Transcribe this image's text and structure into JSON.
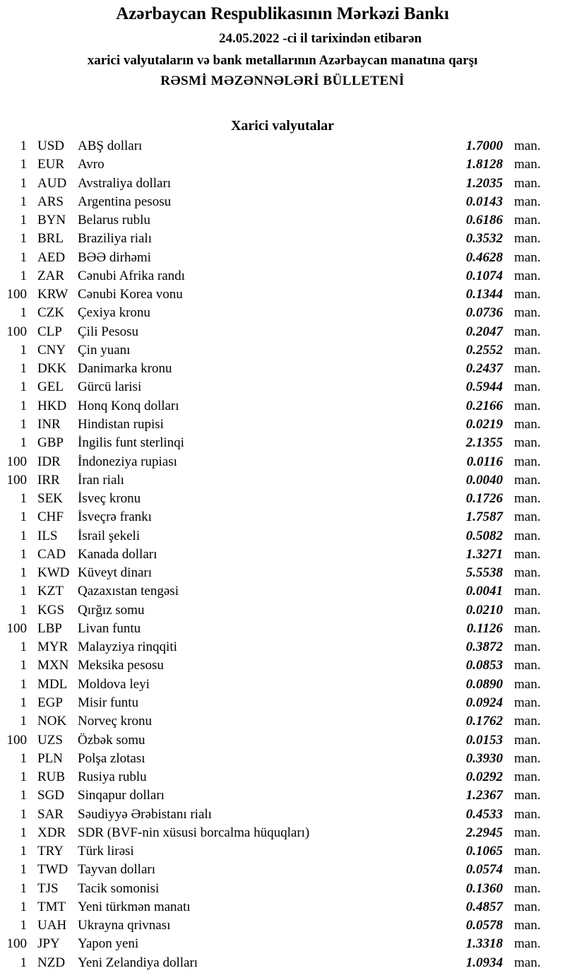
{
  "header": {
    "title": "Azərbaycan Respublikasının Mərkəzi Bankı",
    "date_line": "24.05.2022 -ci il tarixindən etibarən",
    "subtitle": "xarici valyutaların və bank metallarının Azərbaycan manatına qarşı",
    "bulletin": "RƏSMİ MƏZƏNNƏLƏRİ BÜLLETENİ"
  },
  "section_title": "Xarici valyutalar",
  "unit": "man.",
  "rates": [
    {
      "amount": "1",
      "code": "USD",
      "name": "ABŞ dolları",
      "rate": "1.7000"
    },
    {
      "amount": "1",
      "code": "EUR",
      "name": "Avro",
      "rate": "1.8128"
    },
    {
      "amount": "1",
      "code": "AUD",
      "name": "Avstraliya dolları",
      "rate": "1.2035"
    },
    {
      "amount": "1",
      "code": "ARS",
      "name": "Argentina pesosu",
      "rate": "0.0143"
    },
    {
      "amount": "1",
      "code": "BYN",
      "name": "Belarus rublu",
      "rate": "0.6186"
    },
    {
      "amount": "1",
      "code": "BRL",
      "name": "Braziliya rialı",
      "rate": "0.3532"
    },
    {
      "amount": "1",
      "code": "AED",
      "name": "BƏƏ dirhəmi",
      "rate": "0.4628"
    },
    {
      "amount": "1",
      "code": "ZAR",
      "name": "Cənubi Afrika randı",
      "rate": "0.1074"
    },
    {
      "amount": "100",
      "code": "KRW",
      "name": "Cənubi Korea vonu",
      "rate": "0.1344"
    },
    {
      "amount": "1",
      "code": "CZK",
      "name": "Çexiya kronu",
      "rate": "0.0736"
    },
    {
      "amount": "100",
      "code": "CLP",
      "name": "Çili Pesosu",
      "rate": "0.2047"
    },
    {
      "amount": "1",
      "code": "CNY",
      "name": "Çin yuanı",
      "rate": "0.2552"
    },
    {
      "amount": "1",
      "code": "DKK",
      "name": "Danimarka kronu",
      "rate": "0.2437"
    },
    {
      "amount": "1",
      "code": "GEL",
      "name": "Gürcü larisi",
      "rate": "0.5944"
    },
    {
      "amount": "1",
      "code": "HKD",
      "name": "Honq Konq dolları",
      "rate": "0.2166"
    },
    {
      "amount": "1",
      "code": "INR",
      "name": "Hindistan rupisi",
      "rate": "0.0219"
    },
    {
      "amount": "1",
      "code": "GBP",
      "name": "İngilis funt sterlinqi",
      "rate": "2.1355"
    },
    {
      "amount": "100",
      "code": "IDR",
      "name": "İndoneziya rupiası",
      "rate": "0.0116"
    },
    {
      "amount": "100",
      "code": "IRR",
      "name": "İran rialı",
      "rate": "0.0040"
    },
    {
      "amount": "1",
      "code": "SEK",
      "name": "İsveç kronu",
      "rate": "0.1726"
    },
    {
      "amount": "1",
      "code": "CHF",
      "name": "İsveçrə frankı",
      "rate": "1.7587"
    },
    {
      "amount": "1",
      "code": "ILS",
      "name": "İsrail şekeli",
      "rate": "0.5082"
    },
    {
      "amount": "1",
      "code": "CAD",
      "name": "Kanada dolları",
      "rate": "1.3271"
    },
    {
      "amount": "1",
      "code": "KWD",
      "name": "Küveyt dinarı",
      "rate": "5.5538"
    },
    {
      "amount": "1",
      "code": "KZT",
      "name": "Qazaxıstan tengəsi",
      "rate": "0.0041"
    },
    {
      "amount": "1",
      "code": "KGS",
      "name": "Qırğız somu",
      "rate": "0.0210"
    },
    {
      "amount": "100",
      "code": "LBP",
      "name": "Livan funtu",
      "rate": "0.1126"
    },
    {
      "amount": "1",
      "code": "MYR",
      "name": "Malayziya rinqqiti",
      "rate": "0.3872"
    },
    {
      "amount": "1",
      "code": "MXN",
      "name": "Meksika pesosu",
      "rate": "0.0853"
    },
    {
      "amount": "1",
      "code": "MDL",
      "name": "Moldova leyi",
      "rate": "0.0890"
    },
    {
      "amount": "1",
      "code": "EGP",
      "name": "Misir funtu",
      "rate": "0.0924"
    },
    {
      "amount": "1",
      "code": "NOK",
      "name": "Norveç kronu",
      "rate": "0.1762"
    },
    {
      "amount": "100",
      "code": "UZS",
      "name": "Özbək somu",
      "rate": "0.0153"
    },
    {
      "amount": "1",
      "code": "PLN",
      "name": "Polşa zlotası",
      "rate": "0.3930"
    },
    {
      "amount": "1",
      "code": "RUB",
      "name": "Rusiya rublu",
      "rate": "0.0292"
    },
    {
      "amount": "1",
      "code": "SGD",
      "name": "Sinqapur dolları",
      "rate": "1.2367"
    },
    {
      "amount": "1",
      "code": "SAR",
      "name": "Səudiyyə Ərəbistanı rialı",
      "rate": "0.4533"
    },
    {
      "amount": "1",
      "code": "XDR",
      "name": "SDR (BVF-nin xüsusi borcalma hüquqları)",
      "rate": "2.2945"
    },
    {
      "amount": "1",
      "code": "TRY",
      "name": "Türk lirəsi",
      "rate": "0.1065"
    },
    {
      "amount": "1",
      "code": "TWD",
      "name": "Tayvan dolları",
      "rate": "0.0574"
    },
    {
      "amount": "1",
      "code": "TJS",
      "name": "Tacik somonisi",
      "rate": "0.1360"
    },
    {
      "amount": "1",
      "code": "TMT",
      "name": "Yeni türkmən manatı",
      "rate": "0.4857"
    },
    {
      "amount": "1",
      "code": "UAH",
      "name": "Ukrayna qrivnası",
      "rate": "0.0578"
    },
    {
      "amount": "100",
      "code": "JPY",
      "name": "Yapon yeni",
      "rate": "1.3318"
    },
    {
      "amount": "1",
      "code": "NZD",
      "name": "Yeni Zelandiya dolları",
      "rate": "1.0934"
    }
  ]
}
